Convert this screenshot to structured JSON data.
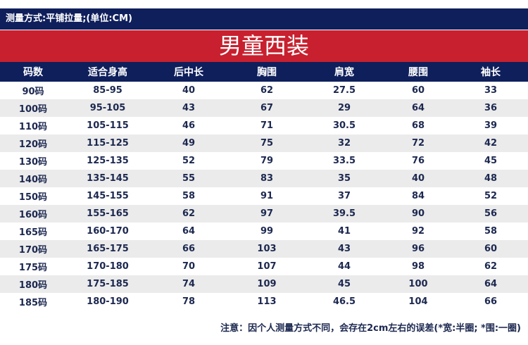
{
  "header": {
    "measure_note": "测量方式:平铺拉量;(单位:CM)",
    "title": "男童西装"
  },
  "table": {
    "columns": [
      "码数",
      "适合身高",
      "后中长",
      "胸围",
      "肩宽",
      "腰围",
      "袖长"
    ],
    "rows": [
      [
        "90码",
        "85-95",
        "40",
        "62",
        "27.5",
        "60",
        "33"
      ],
      [
        "100码",
        "95-105",
        "43",
        "67",
        "29",
        "64",
        "36"
      ],
      [
        "110码",
        "105-115",
        "46",
        "71",
        "30.5",
        "68",
        "39"
      ],
      [
        "120码",
        "115-125",
        "49",
        "75",
        "32",
        "72",
        "42"
      ],
      [
        "130码",
        "125-135",
        "52",
        "79",
        "33.5",
        "76",
        "45"
      ],
      [
        "140码",
        "135-145",
        "55",
        "83",
        "35",
        "40",
        "48"
      ],
      [
        "150码",
        "145-155",
        "58",
        "91",
        "37",
        "84",
        "52"
      ],
      [
        "160码",
        "155-165",
        "62",
        "97",
        "39.5",
        "90",
        "56"
      ],
      [
        "165码",
        "160-170",
        "64",
        "99",
        "41",
        "92",
        "58"
      ],
      [
        "170码",
        "165-175",
        "66",
        "103",
        "43",
        "96",
        "60"
      ],
      [
        "175码",
        "170-180",
        "70",
        "107",
        "44",
        "98",
        "62"
      ],
      [
        "180码",
        "175-185",
        "74",
        "109",
        "45",
        "100",
        "64"
      ],
      [
        "185码",
        "180-190",
        "78",
        "113",
        "46.5",
        "104",
        "66"
      ]
    ]
  },
  "footer": {
    "note": "注意：因个人测量方式不同，会存在2cm左右的误差(*宽:半圈; *围:一圈)"
  }
}
